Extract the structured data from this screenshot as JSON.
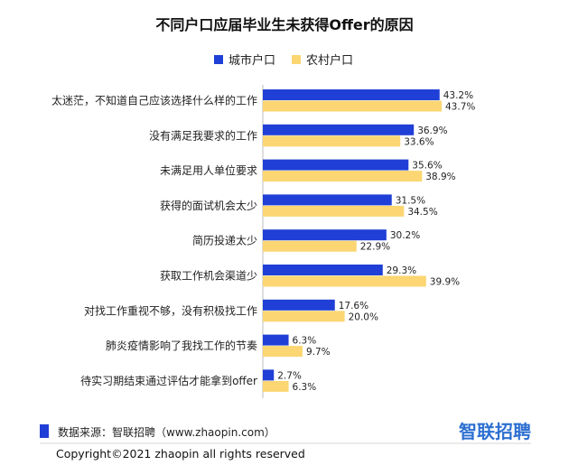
{
  "chart_data": {
    "type": "bar",
    "orientation": "horizontal",
    "title": "不同户口应届毕业生未获得Offer的原因",
    "categories": [
      "太迷茫，不知道自己应该选择什么样的工作",
      "没有满足我要求的工作",
      "未满足用人单位要求",
      "获得的面试机会太少",
      "简历投递太少",
      "获取工作机会渠道少",
      "对找工作重视不够，没有积极找工作",
      "肺炎疫情影响了我找工作的节奏",
      "待实习期结束通过评估才能拿到offer"
    ],
    "series": [
      {
        "name": "城市户口",
        "color": "#1f3fd6",
        "values": [
          43.2,
          36.9,
          35.6,
          31.5,
          30.2,
          29.3,
          17.6,
          6.3,
          2.7
        ]
      },
      {
        "name": "农村户口",
        "color": "#fbd672",
        "values": [
          43.7,
          33.6,
          38.9,
          34.5,
          22.9,
          39.9,
          20.0,
          9.7,
          6.3
        ]
      }
    ],
    "value_suffix": "%",
    "xlim": [
      0,
      50
    ],
    "grid": false,
    "legend_position": "top"
  },
  "footer": {
    "source": "数据来源：智联招聘（www.zhaopin.com）",
    "source_marker_color": "#1f3fd6",
    "copyright": "Copyright©2021 zhaopin all rights reserved",
    "brand": "智联招聘"
  }
}
